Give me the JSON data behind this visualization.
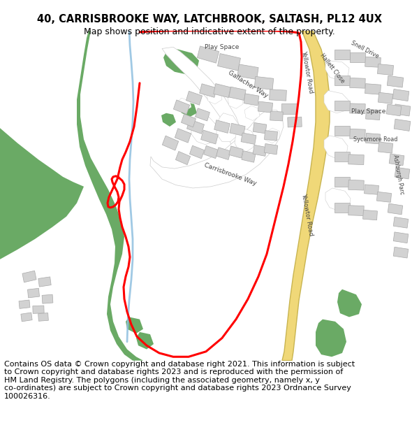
{
  "title_line1": "40, CARRISBROOKE WAY, LATCHBROOK, SALTASH, PL12 4UX",
  "title_line2": "Map shows position and indicative extent of the property.",
  "copyright_text": "Contains OS data © Crown copyright and database right 2021. This information is subject\nto Crown copyright and database rights 2023 and is reproduced with the permission of\nHM Land Registry. The polygons (including the associated geometry, namely x, y\nco-ordinates) are subject to Crown copyright and database rights 2023 Ordnance Survey\n100026316.",
  "map_bg": "#f5f5f0",
  "title_fontsize": 10.5,
  "subtitle_fontsize": 9,
  "copyright_fontsize": 8,
  "fig_width": 6.0,
  "fig_height": 6.25,
  "green_color": "#6aaa65",
  "red_color": "#ff0000",
  "yellow_road": "#f0d878",
  "yellow_road_edge": "#c8b450",
  "white_road": "#ffffff",
  "road_edge": "#cccccc",
  "building_color": "#d2d2d2",
  "building_edge": "#aaaaaa",
  "stream_color": "#90c0e0",
  "text_color": "#444444"
}
